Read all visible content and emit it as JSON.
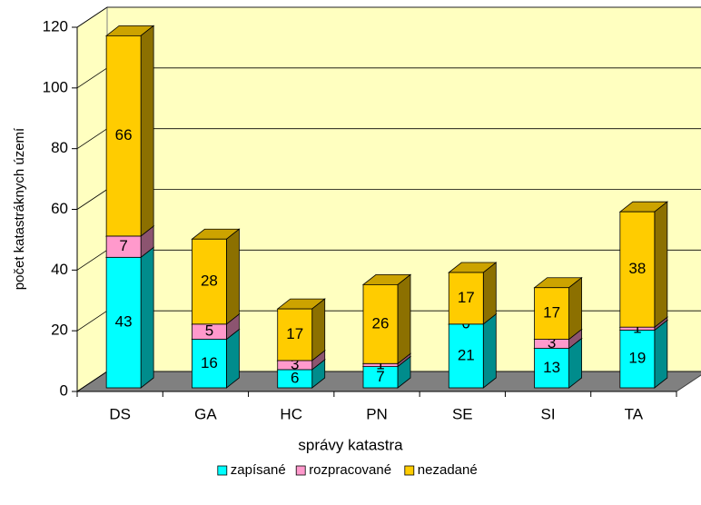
{
  "chart_data": {
    "type": "bar3d_stacked",
    "xlabel": "správy katastra",
    "ylabel": "počet katastráknych území",
    "categories": [
      "DS",
      "GA",
      "HC",
      "PN",
      "SE",
      "SI",
      "TA"
    ],
    "series": [
      {
        "name": "zapísané",
        "color": "#00ffff",
        "values": [
          43,
          16,
          6,
          7,
          21,
          13,
          19
        ]
      },
      {
        "name": "rozpracované",
        "color": "#ff99cc",
        "values": [
          7,
          5,
          3,
          1,
          0,
          3,
          1
        ]
      },
      {
        "name": "nezadané",
        "color": "#ffcc00",
        "values": [
          66,
          28,
          17,
          26,
          17,
          17,
          38
        ]
      }
    ],
    "ylim": [
      0,
      120
    ],
    "yticks": [
      0,
      20,
      40,
      60,
      80,
      100,
      120
    ],
    "grid": true,
    "legend": "bottom"
  }
}
